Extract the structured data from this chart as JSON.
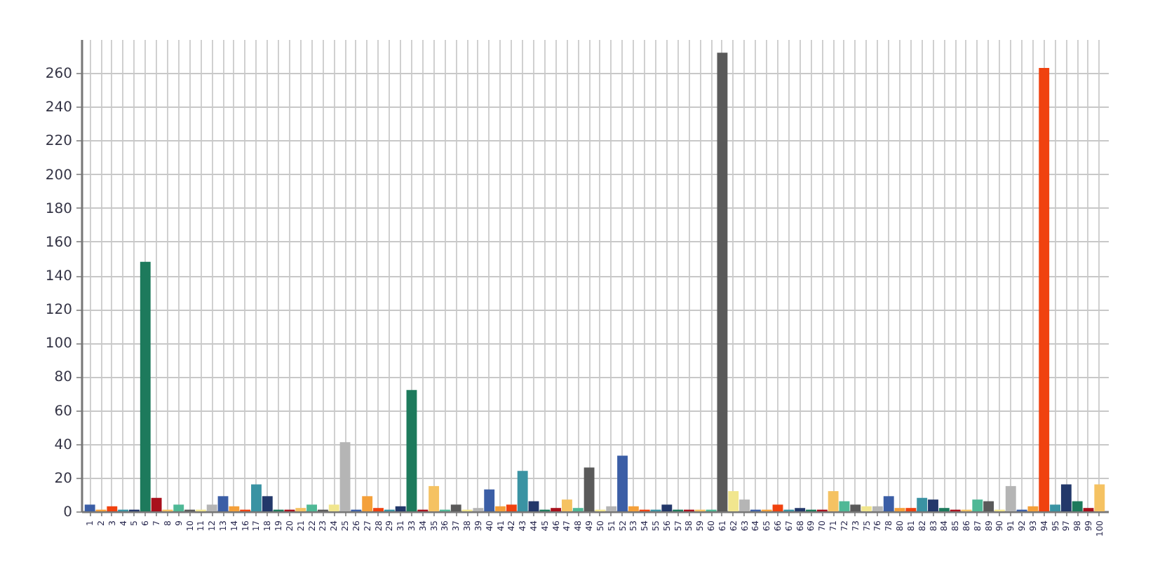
{
  "chart_data": {
    "type": "bar",
    "categories": [
      "1",
      "2",
      "3",
      "4",
      "5",
      "6",
      "7",
      "8",
      "9",
      "10",
      "11",
      "12",
      "13",
      "14",
      "16",
      "17",
      "18",
      "19",
      "20",
      "21",
      "22",
      "23",
      "24",
      "25",
      "26",
      "27",
      "28",
      "29",
      "31",
      "33",
      "34",
      "35",
      "36",
      "37",
      "38",
      "39",
      "40",
      "41",
      "42",
      "43",
      "44",
      "45",
      "46",
      "47",
      "48",
      "49",
      "50",
      "51",
      "52",
      "53",
      "54",
      "55",
      "56",
      "57",
      "58",
      "59",
      "60",
      "61",
      "62",
      "63",
      "64",
      "65",
      "66",
      "67",
      "68",
      "69",
      "70",
      "71",
      "72",
      "73",
      "75",
      "76",
      "78",
      "80",
      "81",
      "82",
      "83",
      "84",
      "85",
      "86",
      "87",
      "89",
      "90",
      "91",
      "92",
      "93",
      "94",
      "95",
      "97",
      "98",
      "99",
      "100"
    ],
    "values": [
      4,
      1,
      3,
      1,
      1,
      148,
      8,
      1,
      4,
      1,
      1,
      4,
      9,
      3,
      1,
      16,
      9,
      1,
      1,
      2,
      4,
      1,
      4,
      41,
      1,
      9,
      2,
      1,
      3,
      72,
      1,
      15,
      1,
      4,
      1,
      2,
      13,
      3,
      4,
      24,
      6,
      1,
      2,
      7,
      2,
      26,
      1,
      3,
      33,
      3,
      1,
      1,
      4,
      1,
      1,
      1,
      1,
      272,
      12,
      7,
      1,
      1,
      4,
      1,
      2,
      1,
      1,
      12,
      6,
      4,
      3,
      3,
      9,
      2,
      2,
      8,
      7,
      2,
      1,
      1,
      7,
      6,
      1,
      15,
      1,
      3,
      263,
      4,
      16,
      6,
      2,
      16
    ],
    "colors": [
      "#3b5ea6",
      "#f4a03a",
      "#f0420f",
      "#3a93a3",
      "#23386a",
      "#1d7a5c",
      "#a8101c",
      "#f5c262",
      "#4fb896",
      "#5a5a5a",
      "#f1e68e",
      "#b5b5b5",
      "#3b5ea6",
      "#f4a03a",
      "#f0420f",
      "#3a93a3",
      "#23386a",
      "#1d7a5c",
      "#a8101c",
      "#f5c262",
      "#4fb896",
      "#5a5a5a",
      "#f1e68e",
      "#b5b5b5",
      "#3b5ea6",
      "#f4a03a",
      "#f0420f",
      "#3a93a3",
      "#23386a",
      "#1d7a5c",
      "#a8101c",
      "#f5c262",
      "#4fb896",
      "#5a5a5a",
      "#f1e68e",
      "#b5b5b5",
      "#3b5ea6",
      "#f4a03a",
      "#f0420f",
      "#3a93a3",
      "#23386a",
      "#1d7a5c",
      "#a8101c",
      "#f5c262",
      "#4fb896",
      "#5a5a5a",
      "#f1e68e",
      "#b5b5b5",
      "#3b5ea6",
      "#f4a03a",
      "#f0420f",
      "#3a93a3",
      "#23386a",
      "#1d7a5c",
      "#a8101c",
      "#f5c262",
      "#4fb896",
      "#5a5a5a",
      "#f1e68e",
      "#b5b5b5",
      "#3b5ea6",
      "#f4a03a",
      "#f0420f",
      "#3a93a3",
      "#23386a",
      "#1d7a5c",
      "#a8101c",
      "#f5c262",
      "#4fb896",
      "#5a5a5a",
      "#f1e68e",
      "#b5b5b5",
      "#3b5ea6",
      "#f4a03a",
      "#f0420f",
      "#3a93a3",
      "#23386a",
      "#1d7a5c",
      "#a8101c",
      "#f5c262",
      "#4fb896",
      "#5a5a5a",
      "#f1e68e",
      "#b5b5b5",
      "#3b5ea6",
      "#f4a03a",
      "#f0420f",
      "#3a93a3",
      "#23386a",
      "#1d7a5c",
      "#a8101c",
      "#f5c262"
    ],
    "ylim": [
      0,
      280
    ],
    "yticks": [
      0,
      20,
      40,
      60,
      80,
      100,
      120,
      140,
      160,
      180,
      200,
      220,
      240,
      260
    ],
    "grid": true
  }
}
